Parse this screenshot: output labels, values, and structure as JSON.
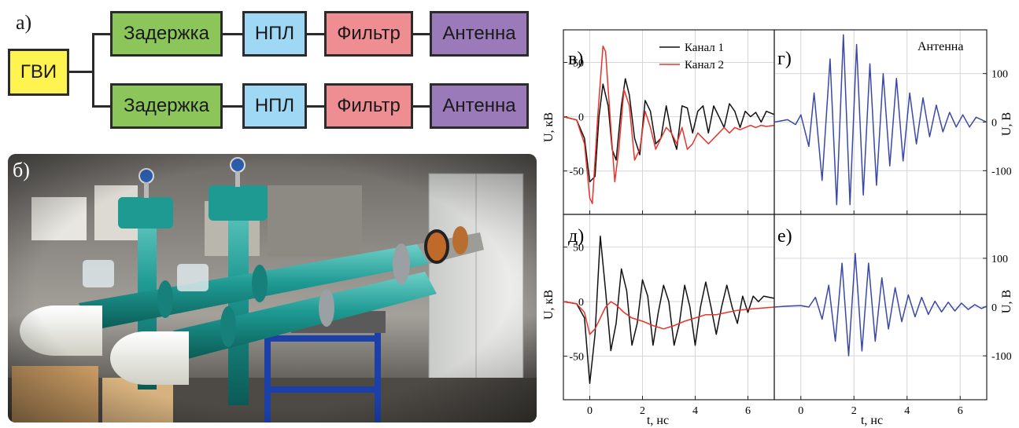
{
  "diagram": {
    "label": "а)",
    "source_block": "ГВИ",
    "chains": [
      [
        "Задержка",
        "НПЛ",
        "Фильтр",
        "Антенна"
      ],
      [
        "Задержка",
        "НПЛ",
        "Фильтр",
        "Антенна"
      ]
    ],
    "colors": {
      "source": "#fff34f",
      "delay": "#8cc65a",
      "npl": "#9fd8f4",
      "filter": "#ee8d92",
      "antenna": "#9a7ab8"
    }
  },
  "photo": {
    "label": "б)",
    "description_icons": [
      "pipe-icon",
      "pressure-gauge-icon",
      "coil-icon",
      "cabinet-icon"
    ]
  },
  "colors": {
    "channel1": "#111111",
    "channel2": "#e8332a",
    "antenna": "#3a48a8",
    "grid": "#d6d6d6",
    "axis": "#222222"
  },
  "chart_data": [
    {
      "id": "v",
      "type": "line",
      "panel_label": "в)",
      "ylabel": "U, кВ",
      "xlim": [
        -1,
        7
      ],
      "ylim": [
        -90,
        80
      ],
      "yticks": [
        -50,
        0,
        50
      ],
      "grid": true,
      "legend": {
        "placement": "top-right",
        "entries": [
          "Канал 1",
          "Канал 2"
        ]
      },
      "series": [
        {
          "name": "Канал 1",
          "color_key": "channel1",
          "x": [
            -1,
            -0.5,
            -0.2,
            0,
            0.2,
            0.35,
            0.5,
            0.7,
            0.85,
            1.0,
            1.2,
            1.35,
            1.5,
            1.7,
            1.9,
            2.1,
            2.3,
            2.5,
            2.7,
            2.9,
            3.1,
            3.3,
            3.5,
            3.7,
            3.9,
            4.1,
            4.3,
            4.5,
            4.7,
            4.9,
            5.1,
            5.3,
            5.5,
            5.7,
            5.9,
            6.1,
            6.3,
            6.5,
            6.7,
            7.0
          ],
          "y": [
            0,
            -3,
            -20,
            -60,
            -55,
            0,
            30,
            10,
            -30,
            -40,
            10,
            35,
            20,
            -20,
            -35,
            15,
            5,
            -25,
            -20,
            10,
            -15,
            -30,
            10,
            8,
            -15,
            5,
            10,
            -15,
            10,
            0,
            -10,
            12,
            5,
            -10,
            5,
            0,
            4,
            -5,
            5,
            2
          ]
        },
        {
          "name": "Канал 2",
          "color_key": "channel2",
          "x": [
            -1,
            -0.5,
            -0.2,
            0,
            0.1,
            0.3,
            0.5,
            0.6,
            0.8,
            0.95,
            1.1,
            1.3,
            1.5,
            1.7,
            1.9,
            2.1,
            2.3,
            2.5,
            2.7,
            2.9,
            3.1,
            3.3,
            3.5,
            3.7,
            3.9,
            4.1,
            4.3,
            4.5,
            4.7,
            4.9,
            5.1,
            5.3,
            5.5,
            5.7,
            5.9,
            6.1,
            6.3,
            6.5,
            6.7,
            7.0
          ],
          "y": [
            0,
            -3,
            -25,
            -75,
            -80,
            0,
            65,
            60,
            -10,
            -60,
            -30,
            25,
            10,
            -40,
            -30,
            5,
            -10,
            -30,
            -20,
            -10,
            -15,
            -25,
            -10,
            -30,
            -25,
            -15,
            -20,
            -25,
            -20,
            -15,
            -10,
            -15,
            -10,
            -12,
            -10,
            -8,
            -10,
            -8,
            -9,
            -8
          ]
        }
      ]
    },
    {
      "id": "g",
      "type": "line",
      "panel_label": "г)",
      "annotation": "Антенна",
      "ylabel": "U, В",
      "ylabel_side": "right",
      "xlim": [
        -1,
        7
      ],
      "ylim": [
        -190,
        190
      ],
      "yticks": [
        -100,
        0,
        100
      ],
      "grid": true,
      "series": [
        {
          "name": "Антенна",
          "color_key": "antenna",
          "x": [
            -1,
            -0.5,
            -0.2,
            0,
            0.3,
            0.5,
            0.8,
            1.1,
            1.35,
            1.6,
            1.85,
            2.1,
            2.35,
            2.6,
            2.85,
            3.1,
            3.35,
            3.6,
            3.85,
            4.1,
            4.35,
            4.6,
            4.85,
            5.1,
            5.35,
            5.6,
            5.85,
            6.1,
            6.35,
            6.6,
            7.0
          ],
          "y": [
            0,
            5,
            -5,
            15,
            -50,
            60,
            -120,
            130,
            -170,
            180,
            -170,
            160,
            -150,
            120,
            -130,
            100,
            -90,
            90,
            -80,
            60,
            -45,
            50,
            -30,
            35,
            -20,
            20,
            -10,
            15,
            -10,
            10,
            0
          ]
        }
      ]
    },
    {
      "id": "d",
      "type": "line",
      "panel_label": "д)",
      "ylabel": "U, кВ",
      "xlabel": "t, нс",
      "xlim": [
        -1,
        7
      ],
      "ylim": [
        -90,
        80
      ],
      "yticks": [
        -50,
        0,
        50
      ],
      "xticks": [
        0,
        2,
        4,
        6
      ],
      "grid": true,
      "series": [
        {
          "name": "Канал 1",
          "color_key": "channel1",
          "x": [
            -1,
            -0.5,
            -0.2,
            0,
            0.2,
            0.4,
            0.6,
            0.8,
            1.0,
            1.2,
            1.4,
            1.6,
            1.8,
            2.0,
            2.2,
            2.4,
            2.6,
            2.8,
            3.0,
            3.2,
            3.4,
            3.6,
            3.8,
            4.0,
            4.2,
            4.4,
            4.6,
            4.8,
            5.0,
            5.2,
            5.4,
            5.6,
            5.8,
            6.0,
            6.2,
            6.4,
            6.6,
            7.0
          ],
          "y": [
            0,
            -2,
            -15,
            -75,
            -30,
            60,
            10,
            -45,
            -20,
            30,
            10,
            -40,
            -20,
            20,
            5,
            -40,
            -10,
            15,
            0,
            -40,
            -20,
            15,
            -5,
            -40,
            -5,
            18,
            -5,
            -30,
            -5,
            15,
            -5,
            -20,
            5,
            -10,
            5,
            0,
            5,
            3
          ]
        },
        {
          "name": "Канал 2",
          "color_key": "channel2",
          "x": [
            -1,
            -0.5,
            -0.2,
            0,
            0.2,
            0.4,
            0.6,
            0.8,
            1.0,
            1.3,
            1.6,
            2.0,
            2.4,
            2.8,
            3.2,
            3.6,
            4.0,
            4.4,
            4.8,
            5.2,
            5.6,
            6.0,
            6.5,
            7.0
          ],
          "y": [
            0,
            -2,
            -10,
            -30,
            -25,
            -15,
            -5,
            0,
            -3,
            -10,
            -15,
            -18,
            -22,
            -25,
            -22,
            -18,
            -15,
            -12,
            -12,
            -10,
            -8,
            -7,
            -6,
            -5
          ]
        }
      ]
    },
    {
      "id": "e",
      "type": "line",
      "panel_label": "е)",
      "ylabel": "U, В",
      "ylabel_side": "right",
      "xlabel": "t, нс",
      "xlim": [
        -1,
        7
      ],
      "ylim": [
        -190,
        190
      ],
      "yticks": [
        -100,
        0,
        100
      ],
      "xticks": [
        0,
        2,
        4,
        6
      ],
      "grid": true,
      "series": [
        {
          "name": "Антенна",
          "color_key": "antenna",
          "x": [
            -1,
            -0.5,
            0,
            0.3,
            0.55,
            0.8,
            1.05,
            1.3,
            1.55,
            1.8,
            2.05,
            2.3,
            2.55,
            2.8,
            3.05,
            3.3,
            3.55,
            3.8,
            4.05,
            4.3,
            4.55,
            4.8,
            5.05,
            5.3,
            5.55,
            5.8,
            6.05,
            6.3,
            6.55,
            6.8,
            7.0
          ],
          "y": [
            0,
            2,
            3,
            0,
            20,
            -25,
            45,
            -70,
            90,
            -100,
            110,
            -90,
            90,
            -70,
            60,
            -45,
            40,
            -30,
            25,
            -20,
            20,
            -15,
            12,
            -10,
            10,
            -8,
            8,
            -5,
            5,
            -3,
            2
          ]
        }
      ]
    }
  ],
  "axes_text": {
    "xtick_labels": [
      "0",
      "2",
      "4",
      "6"
    ],
    "xlabel_left": "t, нс",
    "xlabel_right": "t, нс"
  }
}
